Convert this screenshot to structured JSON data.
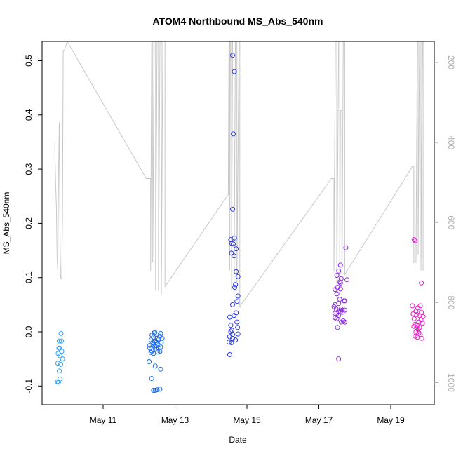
{
  "chart_data": {
    "type": "scatter",
    "title": "ATOM4 Northbound MS_Abs_540nm",
    "xlabel": "Date",
    "ylabel": "MS_Abs_540nm",
    "x_ticks": [
      {
        "day": 11,
        "label": "May 11"
      },
      {
        "day": 13,
        "label": "May 13"
      },
      {
        "day": 15,
        "label": "May 15"
      },
      {
        "day": 17,
        "label": "May 17"
      },
      {
        "day": 19,
        "label": "May 19"
      }
    ],
    "xlim": [
      9.5,
      20.3
    ],
    "ylim": [
      -0.1,
      0.5
    ],
    "y_ticks": [
      "-0.1",
      "0.0",
      "0.1",
      "0.2",
      "0.3",
      "0.4",
      "0.5"
    ],
    "y2_ticks": [
      "200",
      "400",
      "600",
      "800",
      "1000"
    ],
    "y2lim_at_bottom": 1040,
    "y2lim_at_top": 170,
    "y2_direction": "reversed",
    "series": [
      {
        "color": "#29a3ff",
        "points": [
          [
            9.73,
            -0.092
          ],
          [
            9.76,
            -0.093
          ],
          [
            9.8,
            -0.087
          ],
          [
            9.78,
            -0.072
          ],
          [
            9.74,
            -0.058
          ],
          [
            9.82,
            -0.06
          ],
          [
            9.87,
            -0.05
          ],
          [
            9.8,
            -0.044
          ],
          [
            9.75,
            -0.04
          ],
          [
            9.85,
            -0.036
          ],
          [
            9.79,
            -0.03
          ],
          [
            9.77,
            -0.03
          ],
          [
            9.84,
            -0.017
          ],
          [
            9.78,
            -0.017
          ],
          [
            9.83,
            -0.003
          ]
        ]
      },
      {
        "color": "#1a6af0",
        "points": [
          [
            12.4,
            -0.108
          ],
          [
            12.45,
            -0.108
          ],
          [
            12.5,
            -0.107
          ],
          [
            12.58,
            -0.106
          ],
          [
            12.35,
            -0.086
          ],
          [
            12.6,
            -0.069
          ],
          [
            12.45,
            -0.063
          ],
          [
            12.28,
            -0.055
          ],
          [
            12.4,
            -0.04
          ],
          [
            12.35,
            -0.035
          ],
          [
            12.48,
            -0.032
          ],
          [
            12.55,
            -0.03
          ],
          [
            12.6,
            -0.028
          ],
          [
            12.42,
            -0.026
          ],
          [
            12.3,
            -0.025
          ],
          [
            12.5,
            -0.022
          ],
          [
            12.38,
            -0.02
          ],
          [
            12.62,
            -0.019
          ],
          [
            12.46,
            -0.017
          ],
          [
            12.33,
            -0.015
          ],
          [
            12.55,
            -0.014
          ],
          [
            12.5,
            -0.012
          ],
          [
            12.4,
            -0.01
          ],
          [
            12.58,
            -0.008
          ],
          [
            12.36,
            -0.006
          ],
          [
            12.48,
            -0.005
          ],
          [
            12.6,
            -0.003
          ],
          [
            12.42,
            -0.002
          ],
          [
            12.52,
            -0.037
          ],
          [
            12.58,
            -0.036
          ],
          [
            12.3,
            -0.03
          ],
          [
            12.44,
            -0.028
          ],
          [
            12.39,
            -0.024
          ],
          [
            12.47,
            -0.02
          ],
          [
            12.64,
            -0.012
          ],
          [
            12.44,
            -0.001
          ],
          [
            12.33,
            -0.038
          ]
        ]
      },
      {
        "color": "#2b3af0",
        "points": [
          [
            14.6,
            0.51
          ],
          [
            14.65,
            0.48
          ],
          [
            14.62,
            0.365
          ],
          [
            14.6,
            0.226
          ],
          [
            14.65,
            0.173
          ],
          [
            14.55,
            0.17
          ],
          [
            14.58,
            0.163
          ],
          [
            14.62,
            0.162
          ],
          [
            14.7,
            0.153
          ],
          [
            14.57,
            0.145
          ],
          [
            14.64,
            0.14
          ],
          [
            14.7,
            0.111
          ],
          [
            14.75,
            0.102
          ],
          [
            14.68,
            0.087
          ],
          [
            14.66,
            0.082
          ],
          [
            14.75,
            0.066
          ],
          [
            14.72,
            0.056
          ],
          [
            14.6,
            0.05
          ],
          [
            14.7,
            0.035
          ],
          [
            14.64,
            0.03
          ],
          [
            14.52,
            0.027
          ],
          [
            14.72,
            0.018
          ],
          [
            14.55,
            0.012
          ],
          [
            14.74,
            0.008
          ],
          [
            14.58,
            0.003
          ],
          [
            14.55,
            0.0
          ],
          [
            14.75,
            -0.004
          ],
          [
            14.52,
            -0.009
          ],
          [
            14.6,
            -0.012
          ],
          [
            14.68,
            -0.015
          ],
          [
            14.5,
            -0.019
          ],
          [
            14.57,
            -0.02
          ],
          [
            14.52,
            -0.042
          ],
          [
            14.6,
            -0.005
          ]
        ]
      },
      {
        "color": "#8d2ee8",
        "points": [
          [
            17.6,
            0.123
          ],
          [
            17.75,
            0.155
          ],
          [
            17.55,
            0.112
          ],
          [
            17.5,
            0.104
          ],
          [
            17.62,
            0.098
          ],
          [
            17.78,
            0.096
          ],
          [
            17.58,
            0.092
          ],
          [
            17.6,
            0.09
          ],
          [
            17.52,
            0.082
          ],
          [
            17.6,
            0.079
          ],
          [
            17.45,
            0.078
          ],
          [
            17.5,
            0.07
          ],
          [
            17.58,
            0.06
          ],
          [
            17.7,
            0.057
          ],
          [
            17.72,
            0.057
          ],
          [
            17.55,
            0.052
          ],
          [
            17.45,
            0.05
          ],
          [
            17.42,
            0.046
          ],
          [
            17.48,
            0.042
          ],
          [
            17.65,
            0.04
          ],
          [
            17.72,
            0.04
          ],
          [
            17.55,
            0.038
          ],
          [
            17.6,
            0.037
          ],
          [
            17.65,
            0.036
          ],
          [
            17.5,
            0.034
          ],
          [
            17.55,
            0.03
          ],
          [
            17.45,
            0.026
          ],
          [
            17.5,
            0.024
          ],
          [
            17.68,
            0.02
          ],
          [
            17.62,
            0.018
          ],
          [
            17.72,
            0.018
          ],
          [
            17.52,
            0.008
          ],
          [
            17.55,
            -0.05
          ],
          [
            17.45,
            0.034
          ],
          [
            17.62,
            0.042
          ]
        ]
      },
      {
        "color": "#e81ec8",
        "points": [
          [
            19.65,
            0.17
          ],
          [
            19.68,
            0.168
          ],
          [
            19.85,
            0.09
          ],
          [
            19.6,
            0.048
          ],
          [
            19.82,
            0.048
          ],
          [
            19.75,
            0.044
          ],
          [
            19.7,
            0.038
          ],
          [
            19.85,
            0.036
          ],
          [
            19.62,
            0.033
          ],
          [
            19.72,
            0.032
          ],
          [
            19.8,
            0.03
          ],
          [
            19.9,
            0.028
          ],
          [
            19.65,
            0.024
          ],
          [
            19.84,
            0.022
          ],
          [
            19.78,
            0.018
          ],
          [
            19.88,
            0.016
          ],
          [
            19.68,
            0.014
          ],
          [
            19.74,
            0.012
          ],
          [
            19.64,
            0.01
          ],
          [
            19.8,
            0.008
          ],
          [
            19.72,
            0.008
          ],
          [
            19.76,
            0.004
          ],
          [
            19.7,
            0.0
          ],
          [
            19.78,
            -0.002
          ],
          [
            19.82,
            -0.005
          ],
          [
            19.68,
            -0.008
          ],
          [
            19.74,
            -0.01
          ],
          [
            19.86,
            -0.012
          ]
        ]
      }
    ],
    "trace": {
      "color": "#c8c8c8",
      "axis": "y2",
      "points": [
        [
          9.66,
          400
        ],
        [
          9.66,
          430
        ],
        [
          9.68,
          500
        ],
        [
          9.7,
          560
        ],
        [
          9.72,
          690
        ],
        [
          9.74,
          720
        ],
        [
          9.76,
          480
        ],
        [
          9.78,
          350
        ],
        [
          9.8,
          620
        ],
        [
          9.82,
          740
        ],
        [
          9.85,
          740
        ],
        [
          9.87,
          580
        ],
        [
          9.89,
          170
        ],
        [
          9.92,
          170
        ],
        [
          10.0,
          120
        ],
        [
          12.2,
          490
        ],
        [
          12.32,
          490
        ],
        [
          12.32,
          720
        ],
        [
          12.35,
          120
        ],
        [
          12.38,
          120
        ],
        [
          12.38,
          700
        ],
        [
          12.42,
          120
        ],
        [
          12.46,
          120
        ],
        [
          12.46,
          770
        ],
        [
          12.5,
          120
        ],
        [
          12.54,
          120
        ],
        [
          12.54,
          770
        ],
        [
          12.58,
          120
        ],
        [
          12.62,
          120
        ],
        [
          12.62,
          780
        ],
        [
          12.66,
          120
        ],
        [
          12.72,
          120
        ],
        [
          12.72,
          760
        ],
        [
          14.48,
          530
        ],
        [
          14.5,
          120
        ],
        [
          14.52,
          120
        ],
        [
          14.52,
          720
        ],
        [
          14.54,
          120
        ],
        [
          14.57,
          120
        ],
        [
          14.57,
          770
        ],
        [
          14.6,
          120
        ],
        [
          14.64,
          120
        ],
        [
          14.64,
          780
        ],
        [
          14.68,
          120
        ],
        [
          14.72,
          120
        ],
        [
          14.72,
          750
        ],
        [
          14.78,
          120
        ],
        [
          14.8,
          120
        ],
        [
          14.8,
          810
        ],
        [
          17.35,
          490
        ],
        [
          17.42,
          490
        ],
        [
          17.42,
          720
        ],
        [
          17.46,
          120
        ],
        [
          17.5,
          120
        ],
        [
          17.5,
          770
        ],
        [
          17.55,
          120
        ],
        [
          17.58,
          120
        ],
        [
          17.58,
          780
        ],
        [
          17.6,
          320
        ],
        [
          17.64,
          320
        ],
        [
          17.64,
          810
        ],
        [
          17.68,
          120
        ],
        [
          17.72,
          120
        ],
        [
          17.72,
          730
        ],
        [
          19.6,
          460
        ],
        [
          19.64,
          460
        ],
        [
          19.64,
          700
        ],
        [
          19.7,
          700
        ],
        [
          19.74,
          120
        ],
        [
          19.76,
          120
        ],
        [
          19.76,
          680
        ],
        [
          19.8,
          120
        ],
        [
          19.84,
          120
        ],
        [
          19.84,
          720
        ],
        [
          19.88,
          120
        ],
        [
          19.9,
          120
        ],
        [
          19.9,
          720
        ]
      ]
    }
  }
}
